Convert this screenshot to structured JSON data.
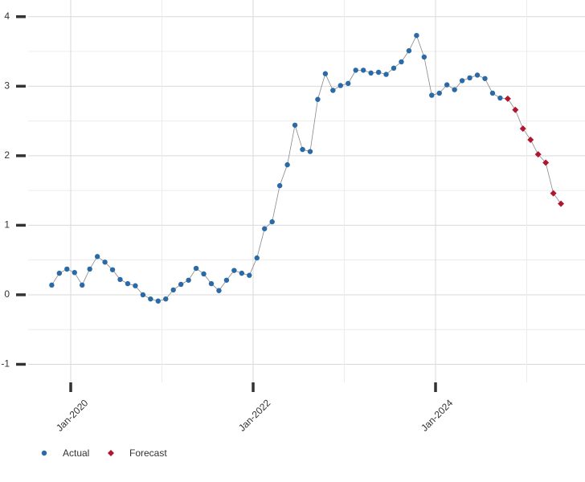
{
  "chart_data": {
    "type": "line",
    "x": [
      "2019-10",
      "2019-11",
      "2019-12",
      "2020-01",
      "2020-02",
      "2020-03",
      "2020-04",
      "2020-05",
      "2020-06",
      "2020-07",
      "2020-08",
      "2020-09",
      "2020-10",
      "2020-11",
      "2020-12",
      "2021-01",
      "2021-02",
      "2021-03",
      "2021-04",
      "2021-05",
      "2021-06",
      "2021-07",
      "2021-08",
      "2021-09",
      "2021-10",
      "2021-11",
      "2021-12",
      "2022-01",
      "2022-02",
      "2022-03",
      "2022-04",
      "2022-05",
      "2022-06",
      "2022-07",
      "2022-08",
      "2022-09",
      "2022-10",
      "2022-11",
      "2022-12",
      "2023-01",
      "2023-02",
      "2023-03",
      "2023-04",
      "2023-05",
      "2023-06",
      "2023-07",
      "2023-08",
      "2023-09",
      "2023-10",
      "2023-11",
      "2023-12",
      "2024-01",
      "2024-02",
      "2024-03",
      "2024-04",
      "2024-05",
      "2024-06",
      "2024-07",
      "2024-08",
      "2024-09",
      "2024-10",
      "2024-11",
      "2024-12",
      "2025-01",
      "2025-02",
      "2025-03",
      "2025-04",
      "2025-05"
    ],
    "series": [
      {
        "name": "Actual",
        "color": "#2a6aa6",
        "marker": "circle",
        "values": [
          0.14,
          0.31,
          0.37,
          0.32,
          0.14,
          0.37,
          0.55,
          0.47,
          0.36,
          0.22,
          0.16,
          0.13,
          0.0,
          -0.06,
          -0.09,
          -0.06,
          0.07,
          0.15,
          0.21,
          0.38,
          0.3,
          0.16,
          0.06,
          0.21,
          0.35,
          0.31,
          0.28,
          0.53,
          0.95,
          1.05,
          1.57,
          1.87,
          2.44,
          2.09,
          2.06,
          2.81,
          3.18,
          2.94,
          3.01,
          3.04,
          3.23,
          3.23,
          3.19,
          3.2,
          3.17,
          3.26,
          3.35,
          3.51,
          3.73,
          3.42,
          2.87,
          2.9,
          3.02,
          2.95,
          3.08,
          3.12,
          3.16,
          3.11,
          2.9,
          2.83,
          null,
          null,
          null,
          null,
          null,
          null,
          null,
          null
        ]
      },
      {
        "name": "Forecast",
        "color": "#b0172e",
        "marker": "diamond",
        "values": [
          null,
          null,
          null,
          null,
          null,
          null,
          null,
          null,
          null,
          null,
          null,
          null,
          null,
          null,
          null,
          null,
          null,
          null,
          null,
          null,
          null,
          null,
          null,
          null,
          null,
          null,
          null,
          null,
          null,
          null,
          null,
          null,
          null,
          null,
          null,
          null,
          null,
          null,
          null,
          null,
          null,
          null,
          null,
          null,
          null,
          null,
          null,
          null,
          null,
          null,
          null,
          null,
          null,
          null,
          null,
          null,
          null,
          null,
          null,
          null,
          2.82,
          2.66,
          2.39,
          2.23,
          2.02,
          1.9,
          1.46,
          1.31
        ]
      }
    ],
    "line_color": "#888888",
    "xlim": [
      "2019-09",
      "2025-06"
    ],
    "xticks": [
      {
        "value": "2020-01",
        "label": "Jan-2020"
      },
      {
        "value": "2022-01",
        "label": "Jan-2022"
      },
      {
        "value": "2024-01",
        "label": "Jan-2024"
      }
    ],
    "ylim": [
      -1.26,
      4.24
    ],
    "yticks": [
      -1,
      0,
      1,
      2,
      3,
      4
    ],
    "grid": true,
    "legend": "bottom-left"
  }
}
